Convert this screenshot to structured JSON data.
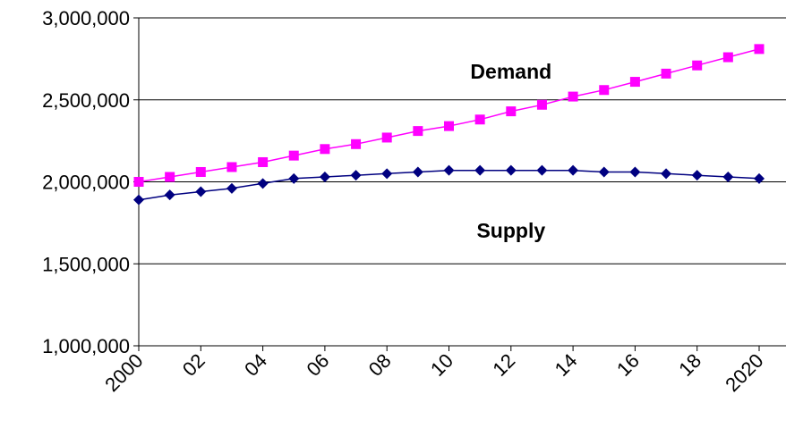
{
  "chart_data": {
    "type": "line",
    "title": "",
    "xlabel": "",
    "ylabel": "",
    "x": [
      2000,
      2001,
      2002,
      2003,
      2004,
      2005,
      2006,
      2007,
      2008,
      2009,
      2010,
      2011,
      2012,
      2013,
      2014,
      2015,
      2016,
      2017,
      2018,
      2019,
      2020
    ],
    "xtick_values": [
      2000,
      2002,
      2004,
      2006,
      2008,
      2010,
      2012,
      2014,
      2016,
      2018,
      2020
    ],
    "xtick_labels": [
      "2000",
      "02",
      "04",
      "06",
      "08",
      "10",
      "12",
      "14",
      "16",
      "18",
      "2020"
    ],
    "ylim": [
      1000000,
      3000000
    ],
    "ytick_values": [
      1000000,
      1500000,
      2000000,
      2500000,
      3000000
    ],
    "ytick_labels": [
      "1,000,000",
      "1,500,000",
      "2,000,000",
      "2,500,000",
      "3,000,000"
    ],
    "grid": "horizontal",
    "legend": "none",
    "series": [
      {
        "label": "Demand",
        "color": "#FF00FF",
        "marker": "square",
        "values": [
          2000000,
          2030000,
          2060000,
          2090000,
          2120000,
          2160000,
          2200000,
          2230000,
          2270000,
          2310000,
          2340000,
          2380000,
          2430000,
          2470000,
          2520000,
          2560000,
          2610000,
          2660000,
          2710000,
          2760000,
          2810000
        ]
      },
      {
        "label": "Supply",
        "color": "#000080",
        "marker": "diamond",
        "values": [
          1890000,
          1920000,
          1940000,
          1960000,
          1990000,
          2020000,
          2030000,
          2040000,
          2050000,
          2060000,
          2070000,
          2070000,
          2070000,
          2070000,
          2070000,
          2060000,
          2060000,
          2050000,
          2040000,
          2030000,
          2020000
        ]
      }
    ],
    "annotations": [
      {
        "text": "Demand",
        "x": 2012,
        "y": 2630000
      },
      {
        "text": "Supply",
        "x": 2012,
        "y": 1660000
      }
    ]
  }
}
